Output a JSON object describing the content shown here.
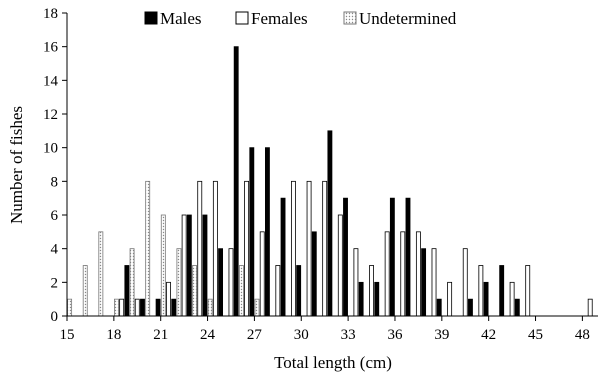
{
  "chart_data": {
    "type": "bar",
    "xlabel": "Total length (cm)",
    "ylabel": "Number of fishes",
    "ylim": [
      0,
      18
    ],
    "yticks": [
      0,
      2,
      4,
      6,
      8,
      10,
      12,
      14,
      16,
      18
    ],
    "xlim": [
      15,
      49
    ],
    "xticks": [
      15,
      18,
      21,
      24,
      27,
      30,
      33,
      36,
      39,
      42,
      45,
      48
    ],
    "x": [
      15,
      16,
      17,
      18,
      19,
      20,
      21,
      22,
      23,
      24,
      25,
      26,
      27,
      28,
      29,
      30,
      31,
      32,
      33,
      34,
      35,
      36,
      37,
      38,
      39,
      40,
      41,
      42,
      43,
      44,
      45,
      46,
      47,
      48,
      49
    ],
    "series": [
      {
        "name": "Males",
        "color": "#000000",
        "pattern": "solid",
        "values": [
          0,
          0,
          0,
          3,
          1,
          1,
          1,
          6,
          6,
          4,
          16,
          10,
          10,
          7,
          3,
          5,
          11,
          7,
          2,
          2,
          7,
          7,
          4,
          1,
          0,
          1,
          2,
          3,
          1,
          0,
          0,
          0,
          0,
          0,
          0
        ]
      },
      {
        "name": "Females",
        "color": "#ffffff",
        "pattern": "outline",
        "values": [
          0,
          0,
          0,
          1,
          1,
          0,
          2,
          6,
          8,
          8,
          4,
          8,
          5,
          3,
          8,
          8,
          8,
          6,
          4,
          3,
          5,
          5,
          5,
          4,
          2,
          4,
          3,
          0,
          2,
          3,
          0,
          0,
          0,
          1,
          1
        ]
      },
      {
        "name": "Undetermined",
        "color": "#cccccc",
        "pattern": "dotted",
        "values": [
          1,
          3,
          5,
          1,
          4,
          8,
          6,
          4,
          3,
          1,
          0,
          3,
          1,
          0,
          0,
          0,
          0,
          0,
          0,
          0,
          0,
          0,
          0,
          0,
          0,
          0,
          0,
          0,
          0,
          0,
          0,
          0,
          0,
          0,
          0
        ]
      }
    ],
    "legend_position": "top"
  }
}
